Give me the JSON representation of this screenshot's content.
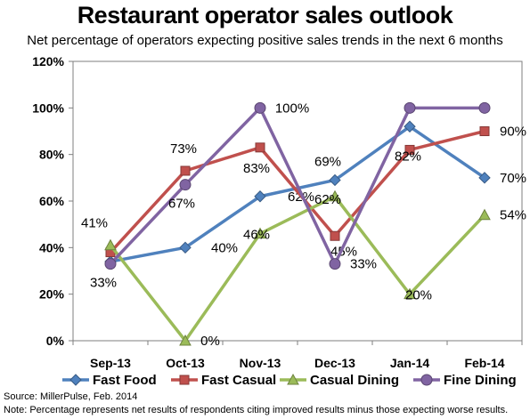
{
  "header": {
    "title": "Restaurant operator sales outlook",
    "subtitle": "Net percentage of operators expecting positive sales trends in the next 6 months"
  },
  "footer": {
    "source": "Source: MillerPulse, Feb. 2014",
    "note": "Note: Percentage represents net results of respondents citing improved results minus those expecting worse results."
  },
  "chart_data": {
    "type": "line",
    "title": "Restaurant operator sales outlook",
    "subtitle": "Net percentage of operators expecting positive sales trends in the next 6 months",
    "categories": [
      "Sep-13",
      "Oct-13",
      "Nov-13",
      "Dec-13",
      "Jan-14",
      "Feb-14"
    ],
    "ylim": [
      0,
      120
    ],
    "yticks": [
      "0%",
      "20%",
      "40%",
      "60%",
      "80%",
      "100%",
      "120%"
    ],
    "grid": false,
    "legend_position": "bottom",
    "series": [
      {
        "name": "Fast Food",
        "values": [
          34,
          40,
          62,
          69,
          92,
          70
        ],
        "color": "#4f81bd",
        "marker": "diamond",
        "labels": [
          "",
          "40%",
          "62%",
          "69%",
          "",
          "70%"
        ]
      },
      {
        "name": "Fast Casual",
        "values": [
          38,
          73,
          83,
          45,
          82,
          90
        ],
        "color": "#c0504d",
        "marker": "square",
        "labels": [
          "",
          "73%",
          "83%",
          "45%",
          "82%",
          "90%"
        ]
      },
      {
        "name": "Casual Dining",
        "values": [
          41,
          0,
          46,
          62,
          20,
          54
        ],
        "color": "#9bbb59",
        "marker": "triangle",
        "labels": [
          "41%",
          "0%",
          "46%",
          "62%",
          "20%",
          "54%"
        ]
      },
      {
        "name": "Fine Dining",
        "values": [
          33,
          67,
          100,
          33,
          100,
          100
        ],
        "color": "#8064a2",
        "marker": "circle",
        "labels": [
          "33%",
          "67%",
          "100%",
          "33%",
          "",
          ""
        ]
      }
    ]
  }
}
